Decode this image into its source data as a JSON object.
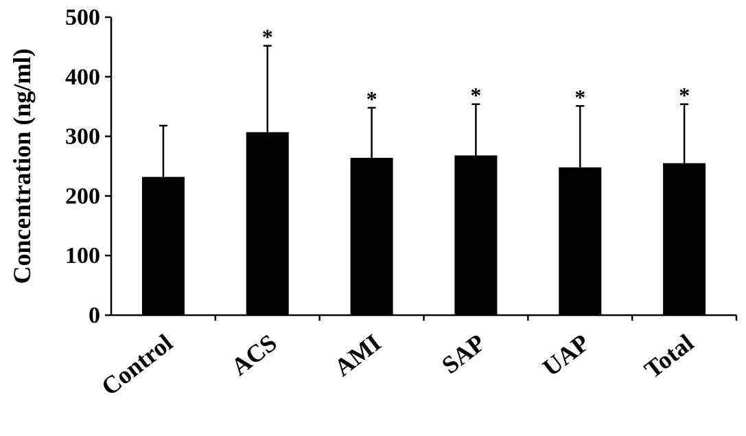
{
  "chart_data": {
    "type": "bar",
    "title": "",
    "xlabel": "",
    "ylabel": "Concentration (ng/ml)",
    "ylim": [
      0,
      500
    ],
    "yticks": [
      "0",
      "100",
      "200",
      "300",
      "400",
      "500"
    ],
    "categories": [
      "Control",
      "ACS",
      "AMI",
      "SAP",
      "UAP",
      "Total"
    ],
    "series": [
      {
        "values": [
          232,
          307,
          264,
          268,
          248,
          255
        ],
        "error_upper": [
          86,
          145,
          84,
          86,
          103,
          99
        ],
        "color": "#000000"
      }
    ],
    "significance_marks": [
      "",
      "*",
      "*",
      "*",
      "*",
      "*"
    ],
    "grid": false,
    "legend": "none"
  }
}
